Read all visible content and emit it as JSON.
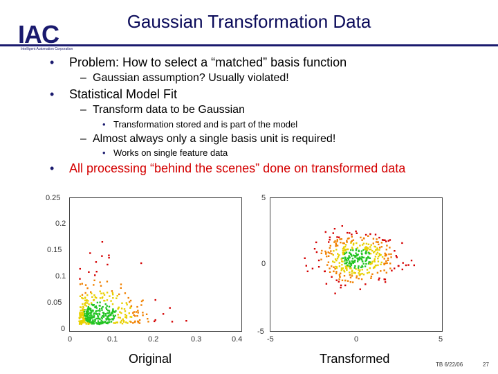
{
  "logo": {
    "text": "IAC",
    "subtitle": "Intelligent Automation Corporation"
  },
  "title": "Gaussian Transformation Data",
  "bullets": {
    "b1": "Problem:  How to select a “matched” basis function",
    "b1_1": "Gaussian assumption? Usually violated!",
    "b2": "Statistical Model Fit",
    "b2_1": "Transform data to be Gaussian",
    "b2_1_1": "Transformation stored and is part of the model",
    "b2_2": "Almost always only a single basis unit is required!",
    "b2_2_1": "Works on single feature data",
    "b3": "All processing “behind the scenes” done on transformed data"
  },
  "dash": "–",
  "dot": "•",
  "left_plot": {
    "yticks": [
      "0.25",
      "0.2",
      "0.15",
      "0.1",
      "0.05",
      "0"
    ],
    "xticks": [
      "0",
      "0.1",
      "0.2",
      "0.3",
      "0.4"
    ],
    "caption": "Original"
  },
  "right_plot": {
    "yticks": [
      "5",
      "0",
      "-5"
    ],
    "xticks": [
      "-5",
      "0",
      "5"
    ],
    "caption": "Transformed"
  },
  "footer": {
    "date": "TB 6/22/06",
    "page": "27"
  },
  "colors": {
    "navy": "#1a1a6e",
    "red": "#d40000",
    "green": "#22c422",
    "yellow": "#e8d000",
    "orange": "#f08000"
  }
}
